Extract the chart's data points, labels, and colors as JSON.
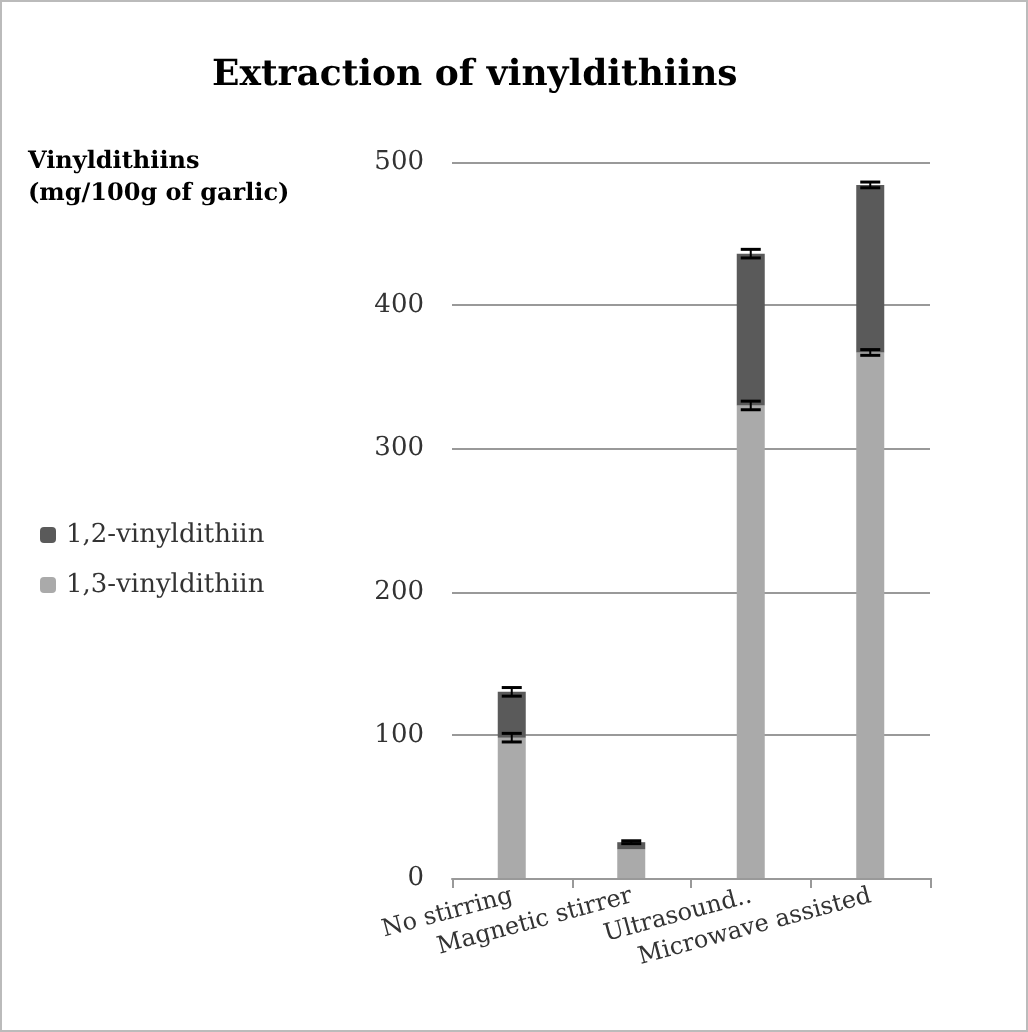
{
  "chart_data": {
    "type": "bar",
    "title": "Extraction of vinyldithiins",
    "ylabel": "Vinyldithiins\n(mg/100g of garlic)",
    "categories": [
      "No stirring",
      "Magnetic stirrer",
      "Ultrasound..",
      "Microwave assisted"
    ],
    "stacked": true,
    "series": [
      {
        "name": "1,3-vinyldithiin",
        "color": "#aaaaaa",
        "values": [
          98,
          20,
          330,
          367
        ],
        "errors": [
          3,
          null,
          3,
          2
        ]
      },
      {
        "name": "1,2-vinyldithiin",
        "color": "#5a5a5a",
        "values": [
          32,
          5,
          106,
          117
        ],
        "errors": [
          3,
          1,
          3,
          2
        ]
      }
    ],
    "ylim": [
      0,
      500
    ],
    "yticks": [
      0,
      100,
      200,
      300,
      400,
      500
    ],
    "grid": "y",
    "legend": "left"
  }
}
